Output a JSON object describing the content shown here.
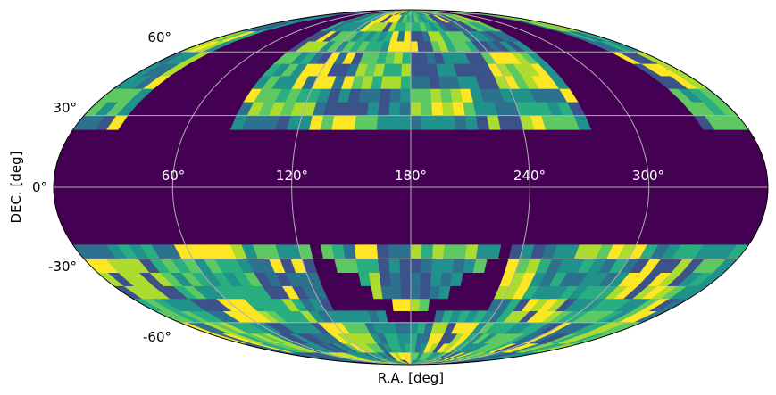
{
  "chart_data": {
    "type": "heatmap",
    "projection": "mollweide",
    "title": "",
    "xlabel": "R.A. [deg]",
    "ylabel": "DEC. [deg]",
    "x_ticks": [
      "60°",
      "120°",
      "180°",
      "240°",
      "300°"
    ],
    "y_ticks": [
      "60°",
      "30°",
      "0°",
      "-30°",
      "-60°"
    ],
    "grid": true,
    "colormap": "viridis",
    "background_color": "#440154",
    "masked_region": "Galactic-plane band, roughly |b| < ~20° shown as dark purple",
    "legend": null,
    "colors": [
      "#440154",
      "#3b528b",
      "#2c728e",
      "#21918c",
      "#28ae80",
      "#5ec962",
      "#addc30",
      "#fde725"
    ]
  },
  "axes": {
    "xlabel": "R.A. [deg]",
    "ylabel": "DEC. [deg]"
  }
}
